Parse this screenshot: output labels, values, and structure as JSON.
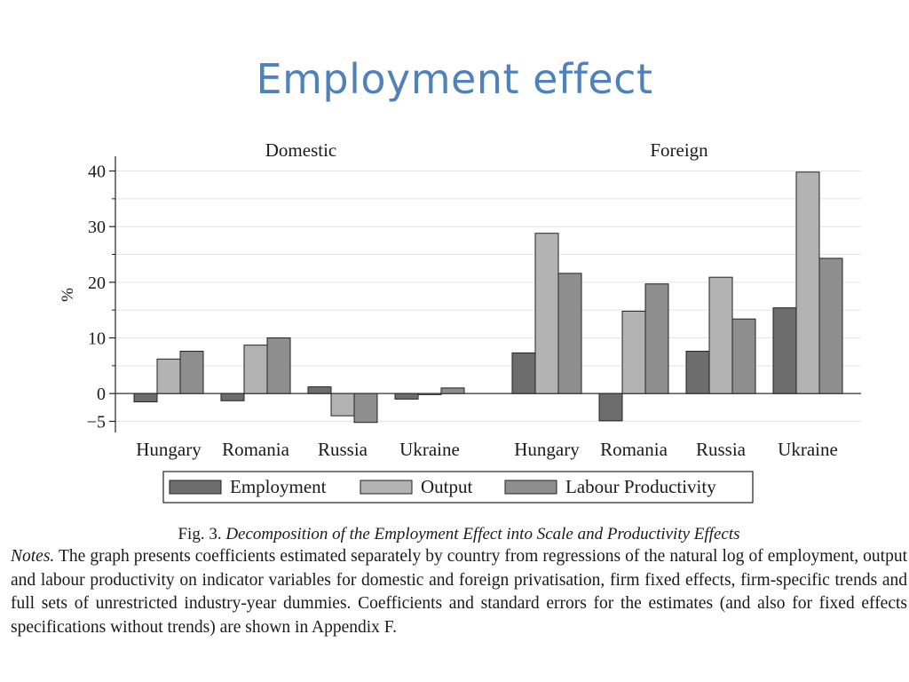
{
  "slide": {
    "title": "Employment effect"
  },
  "chart_data": {
    "type": "bar",
    "panels": [
      {
        "title": "Domestic",
        "categories": [
          "Hungary",
          "Romania",
          "Russia",
          "Ukraine"
        ]
      },
      {
        "title": "Foreign",
        "categories": [
          "Hungary",
          "Romania",
          "Russia",
          "Ukraine"
        ]
      }
    ],
    "series": [
      {
        "name": "Employment",
        "color": "#6d6d6d",
        "values": {
          "Domestic": [
            -1.5,
            -1.3,
            1.2,
            -1.0
          ],
          "Foreign": [
            7.3,
            -4.9,
            7.6,
            15.4
          ]
        }
      },
      {
        "name": "Output",
        "color": "#b3b3b3",
        "values": {
          "Domestic": [
            6.2,
            8.7,
            -4.0,
            -0.2
          ],
          "Foreign": [
            28.8,
            14.8,
            20.9,
            39.8
          ]
        }
      },
      {
        "name": "Labour Productivity",
        "color": "#8e8e8e",
        "values": {
          "Domestic": [
            7.6,
            10.0,
            -5.2,
            1.0
          ],
          "Foreign": [
            21.6,
            19.7,
            13.4,
            24.3
          ]
        }
      }
    ],
    "ylabel": "%",
    "yticks": [
      {
        "value": 40,
        "label": "40"
      },
      {
        "value": 30,
        "label": "30"
      },
      {
        "value": 20,
        "label": "20"
      },
      {
        "value": 10,
        "label": "10"
      },
      {
        "value": 0,
        "label": "0"
      },
      {
        "value": -5,
        "label": "−5"
      }
    ],
    "ylim": [
      -7,
      42
    ],
    "grid": true,
    "legend_position": "bottom"
  },
  "caption": {
    "fig_label": "Fig. 3.",
    "fig_title": "Decomposition of the Employment Effect into Scale and Productivity Effects",
    "notes_label": "Notes.",
    "notes_text": "The graph presents coefficients estimated separately by country from regressions of the natural log of employment, output and labour productivity on indicator variables for domestic and foreign privatisation, firm fixed effects, firm-specific trends and full sets of unrestricted industry-year dummies. Coefficients and standard errors for the estimates (and also for fixed effects specifications without trends) are shown in Appendix F."
  }
}
